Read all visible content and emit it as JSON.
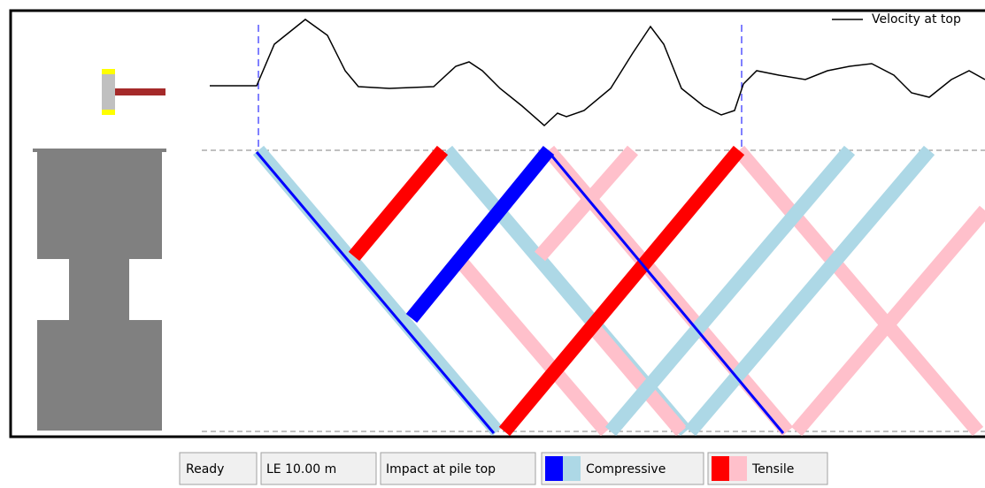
{
  "plot": {
    "legend_label": "Velocity at top"
  },
  "status_bar": {
    "state": "Ready",
    "length": "LE 10.00 m",
    "mode": "Impact at pile top",
    "legend": [
      "Compressive",
      "Tensile"
    ]
  }
}
